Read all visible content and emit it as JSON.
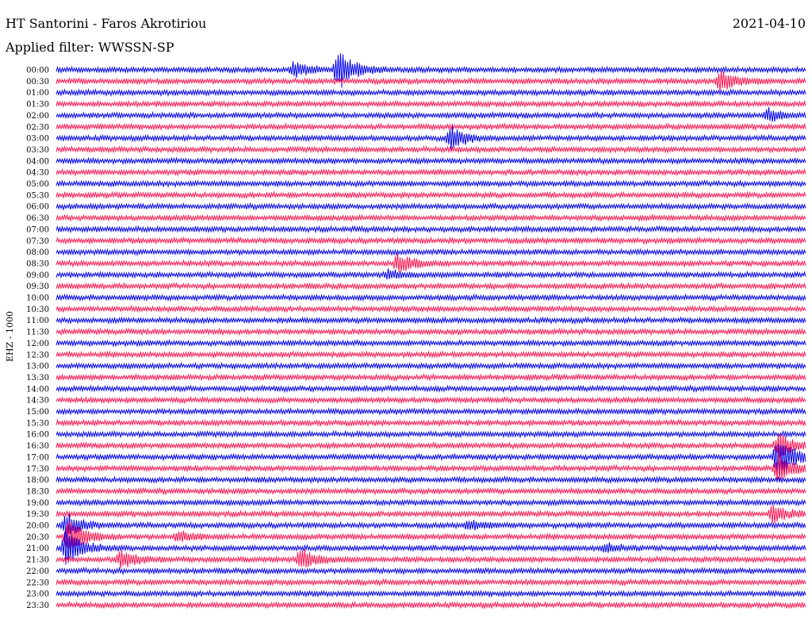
{
  "header": {
    "station": "HT Santorini - Faros Akrotiriou",
    "date": "2021-04-10",
    "filter": "Applied filter: WWSSN-SP"
  },
  "channel_label": "EHZ - 1000",
  "colors": {
    "trace_a": "#0000ee",
    "trace_b": "#ff1450"
  },
  "chart_data": {
    "type": "line",
    "title": "HT Santorini - Faros Akrotiriou",
    "subtitle": "Applied filter: WWSSN-SP",
    "ylabel": "EHZ - 1000",
    "row_labels": [
      "00:00",
      "00:30",
      "01:00",
      "01:30",
      "02:00",
      "02:30",
      "03:00",
      "03:30",
      "04:00",
      "04:30",
      "05:00",
      "05:30",
      "06:00",
      "06:30",
      "07:00",
      "07:30",
      "08:00",
      "08:30",
      "09:00",
      "09:30",
      "10:00",
      "10:30",
      "11:00",
      "11:30",
      "12:00",
      "12:30",
      "13:00",
      "13:30",
      "14:00",
      "14:30",
      "15:00",
      "15:30",
      "16:00",
      "16:30",
      "17:00",
      "17:30",
      "18:00",
      "18:30",
      "19:00",
      "19:30",
      "20:00",
      "20:30",
      "21:00",
      "21:30",
      "22:00",
      "22:30",
      "23:00",
      "23:30"
    ],
    "row_minutes": 30,
    "series_colors": [
      "#0000ee",
      "#ff1450"
    ],
    "events": [
      {
        "row": "00:00",
        "minute": 9.5,
        "amplitude": 0.35
      },
      {
        "row": "00:00",
        "minute": 11.3,
        "amplitude": 1.0
      },
      {
        "row": "00:30",
        "minute": 26.6,
        "amplitude": 0.45
      },
      {
        "row": "02:00",
        "minute": 28.5,
        "amplitude": 0.3
      },
      {
        "row": "03:00",
        "minute": 15.8,
        "amplitude": 0.5
      },
      {
        "row": "08:30",
        "minute": 13.7,
        "amplitude": 0.45
      },
      {
        "row": "09:00",
        "minute": 13.3,
        "amplitude": 0.2
      },
      {
        "row": "16:30",
        "minute": 28.9,
        "amplitude": 0.6
      },
      {
        "row": "17:00",
        "minute": 28.9,
        "amplitude": 1.0
      },
      {
        "row": "17:30",
        "minute": 28.9,
        "amplitude": 0.6
      },
      {
        "row": "19:30",
        "minute": 28.7,
        "amplitude": 0.4
      },
      {
        "row": "20:00",
        "minute": 0.4,
        "amplitude": 0.55
      },
      {
        "row": "20:00",
        "minute": 16.5,
        "amplitude": 0.2
      },
      {
        "row": "20:30",
        "minute": 0.5,
        "amplitude": 0.9
      },
      {
        "row": "20:30",
        "minute": 4.9,
        "amplitude": 0.25
      },
      {
        "row": "21:00",
        "minute": 0.4,
        "amplitude": 0.9
      },
      {
        "row": "21:00",
        "minute": 22.0,
        "amplitude": 0.2
      },
      {
        "row": "21:30",
        "minute": 2.6,
        "amplitude": 0.4
      },
      {
        "row": "21:30",
        "minute": 9.8,
        "amplitude": 0.5
      }
    ]
  }
}
